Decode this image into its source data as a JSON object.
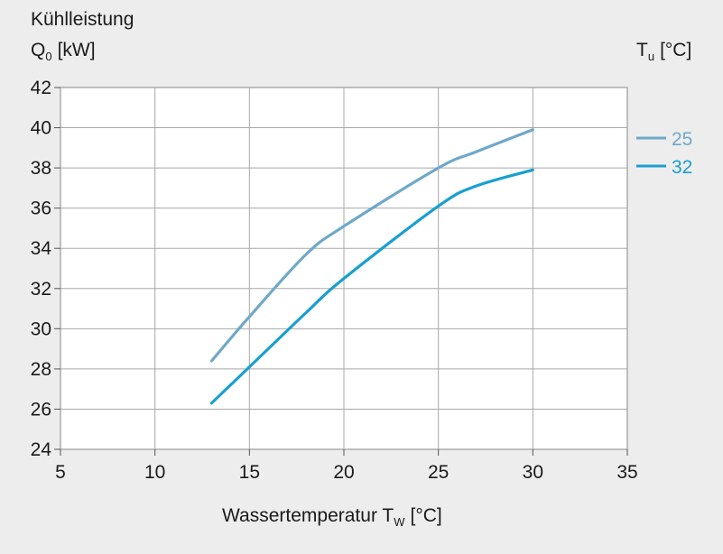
{
  "chart_data": {
    "type": "line",
    "ylabel_line1": "Kühlleistung",
    "ylabel_q": "Q",
    "ylabel_q_sub": "0",
    "ylabel_unit": "[kW]",
    "xlabel_main": "Wassertemperatur T",
    "xlabel_sub": "W",
    "xlabel_unit": "[°C]",
    "legend_title_main": "T",
    "legend_title_sub": "u",
    "legend_title_unit": "[°C]",
    "legend_placement": "right",
    "grid": true,
    "xlim": [
      5,
      35
    ],
    "ylim": [
      24,
      42
    ],
    "xticks": [
      5,
      10,
      15,
      20,
      25,
      30,
      35
    ],
    "yticks": [
      24,
      26,
      28,
      30,
      32,
      34,
      36,
      38,
      40,
      42
    ],
    "series": [
      {
        "name": "25",
        "color": "#6fa8c9",
        "x": [
          13,
          15,
          18,
          20,
          25,
          27,
          30
        ],
        "y": [
          28.4,
          30.6,
          33.7,
          35.1,
          38.0,
          38.8,
          39.9
        ]
      },
      {
        "name": "32",
        "color": "#1a9fd0",
        "x": [
          13,
          15,
          18,
          20,
          25,
          27,
          30
        ],
        "y": [
          26.3,
          28.1,
          30.8,
          32.5,
          36.1,
          37.1,
          37.9
        ]
      }
    ]
  }
}
